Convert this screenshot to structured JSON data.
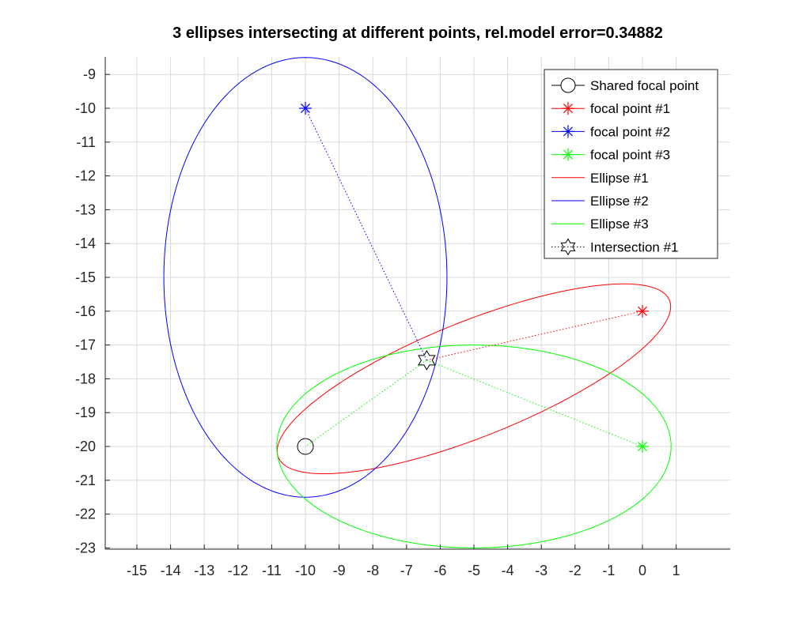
{
  "chart_data": {
    "type": "scatter",
    "title": "3 ellipses intersecting at different points, rel.model error=0.34882",
    "xlabel": "",
    "ylabel": "",
    "xlim": [
      -16,
      2.6
    ],
    "ylim": [
      -23,
      -8.5
    ],
    "xticks": [
      -15,
      -14,
      -13,
      -12,
      -11,
      -10,
      -9,
      -8,
      -7,
      -6,
      -5,
      -4,
      -3,
      -2,
      -1,
      0,
      1
    ],
    "yticks": [
      -9,
      -10,
      -11,
      -12,
      -13,
      -14,
      -15,
      -16,
      -17,
      -18,
      -19,
      -20,
      -21,
      -22,
      -23
    ],
    "grid": true,
    "legend_position": "top-right",
    "shared_focal_point": {
      "name": "Shared focal point",
      "x": -10,
      "y": -20,
      "color": "#000000",
      "marker": "circle"
    },
    "focal_points": [
      {
        "name": "focal point #1",
        "x": 0,
        "y": -16,
        "color": "#ff0000",
        "marker": "asterisk"
      },
      {
        "name": "focal point #2",
        "x": -10,
        "y": -10,
        "color": "#0000ff",
        "marker": "asterisk"
      },
      {
        "name": "focal point #3",
        "x": 0,
        "y": -20,
        "color": "#00ff00",
        "marker": "asterisk"
      }
    ],
    "ellipses": [
      {
        "name": "Ellipse #1",
        "color": "#ff0000",
        "cx": -5,
        "cy": -18,
        "a": 6.25,
        "b": 1.7,
        "rotation_deg": 21.8
      },
      {
        "name": "Ellipse #2",
        "color": "#0000ff",
        "cx": -10,
        "cy": -15,
        "a": 6.5,
        "b": 4.2,
        "rotation_deg": 90
      },
      {
        "name": "Ellipse #3",
        "color": "#00ff00",
        "cx": -5,
        "cy": -20,
        "a": 5.85,
        "b": 3.0,
        "rotation_deg": 0
      }
    ],
    "intersection": {
      "name": "Intersection #1",
      "x": -6.4,
      "y": -17.45,
      "color": "#000000",
      "marker": "hexagram"
    }
  }
}
